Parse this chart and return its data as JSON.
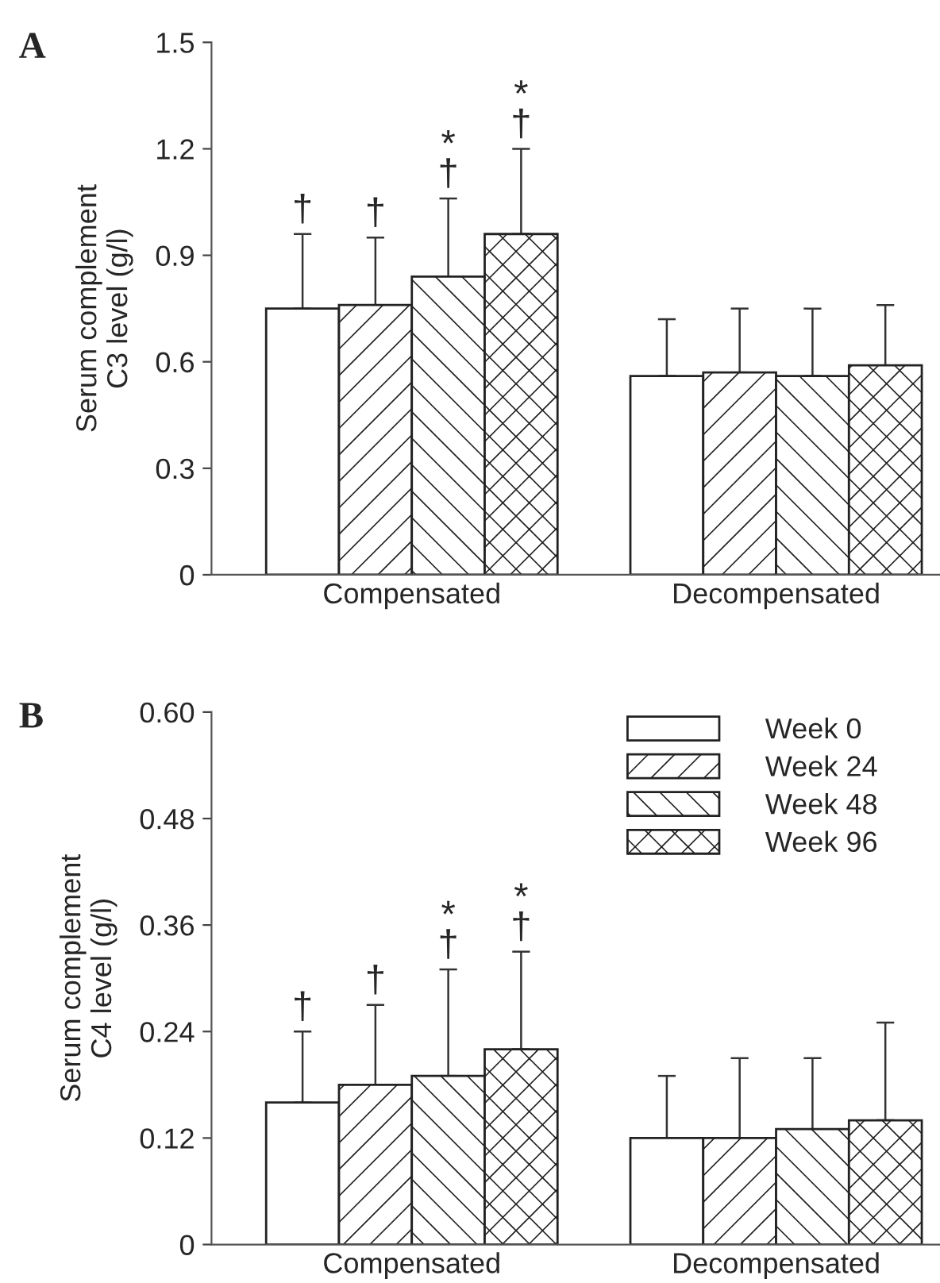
{
  "chart_data": [
    {
      "type": "bar",
      "title": "A",
      "ylabel": "Serum complement\nC3 level (g/l)",
      "categories": [
        "Compensated",
        "Decompensated"
      ],
      "series": [
        {
          "color": "#ffffff",
          "values": [
            0.75,
            0.56
          ],
          "errors": [
            [
              0.75,
              0.96
            ],
            [
              0.56,
              0.72
            ]
          ]
        },
        {
          "color": "#222222",
          "values": [
            0.76,
            0.57
          ],
          "errors": [
            [
              0.76,
              0.95
            ],
            [
              0.57,
              0.75
            ]
          ]
        },
        {
          "color": "#222222",
          "values": [
            0.84,
            0.56
          ],
          "errors": [
            [
              0.84,
              1.06
            ],
            [
              0.56,
              0.75
            ]
          ]
        },
        {
          "color": "#222222",
          "values": [
            0.96,
            0.59
          ],
          "errors": [
            [
              0.96,
              1.2
            ],
            [
              0.59,
              0.76
            ]
          ]
        }
      ],
      "ylim": [
        0,
        1.5
      ],
      "yticks": [
        {
          "value": 0,
          "label": "0"
        },
        0.3,
        0.6,
        0.9,
        1.2,
        1.5
      ],
      "grid": false,
      "legend": false,
      "annotations": [
        "†",
        "†",
        "*\n†",
        "*\n†"
      ]
    },
    {
      "type": "bar",
      "title": "B",
      "ylabel": "Serum complement\nC4 level (g/l)",
      "categories": [
        "Compensated",
        "Decompensated"
      ],
      "series": [
        {
          "name": "Week 0",
          "color": "#ffffff",
          "values": [
            0.16,
            0.12
          ],
          "errors": [
            [
              0.16,
              0.24
            ],
            [
              0.12,
              0.19
            ]
          ]
        },
        {
          "name": "Week 24",
          "color": "#222222",
          "values": [
            0.18,
            0.12
          ],
          "errors": [
            [
              0.18,
              0.27
            ],
            [
              0.12,
              0.21
            ]
          ]
        },
        {
          "name": "Week 48",
          "color": "#222222",
          "values": [
            0.19,
            0.13
          ],
          "errors": [
            [
              0.19,
              0.31
            ],
            [
              0.13,
              0.21
            ]
          ]
        },
        {
          "name": "Week 96",
          "color": "#222222",
          "values": [
            0.22,
            0.14
          ],
          "errors": [
            [
              0.22,
              0.33
            ],
            [
              0.14,
              0.25
            ]
          ]
        }
      ],
      "ylim": [
        0,
        0.6
      ],
      "yticks": [
        {
          "value": 0,
          "label": "0"
        },
        {
          "value": 0.12,
          "label": "0.12"
        },
        {
          "value": 0.24,
          "label": "0.24"
        },
        {
          "value": 0.36,
          "label": "0.36"
        },
        {
          "value": 0.48,
          "label": "0.48"
        },
        {
          "value": 0.6,
          "label": "0.60"
        }
      ],
      "grid": false,
      "legend": "top right",
      "annotations": [
        "†",
        "†",
        "*\n†",
        "*\n†"
      ]
    }
  ]
}
